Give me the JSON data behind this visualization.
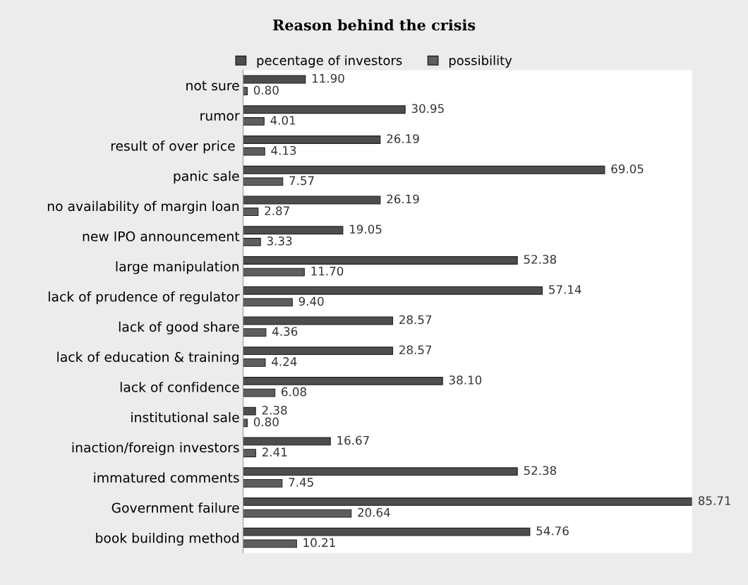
{
  "chart_data": {
    "type": "bar",
    "orientation": "horizontal",
    "title": "Reason behind the crisis",
    "categories": [
      "not sure",
      "rumor",
      "result of over price ",
      "panic sale",
      "no availability of margin loan",
      "new IPO announcement",
      "large manipulation",
      "lack of prudence of regulator",
      "lack of good share",
      "lack of education & training",
      "lack of confidence",
      "institutional sale",
      "inaction/foreign investors",
      "immatured comments",
      "Government failure",
      "book building method"
    ],
    "series": [
      {
        "name": "pecentage of investors",
        "color": "#4d4d4d",
        "values": [
          11.9,
          30.95,
          26.19,
          69.05,
          26.19,
          19.05,
          52.38,
          57.14,
          28.57,
          28.57,
          38.1,
          2.38,
          16.67,
          52.38,
          85.71,
          54.76
        ],
        "value_labels": [
          "11.90",
          "30.95",
          "26.19",
          "69.05",
          "26.19",
          "19.05",
          "52.38",
          "57.14",
          "28.57",
          "28.57",
          "38.10",
          "2.38",
          "16.67",
          "52.38",
          "85.71",
          "54.76"
        ]
      },
      {
        "name": "possibility",
        "color": "#5e5e5e",
        "values": [
          0.8,
          4.01,
          4.13,
          7.57,
          2.87,
          3.33,
          11.7,
          9.4,
          4.36,
          4.24,
          6.08,
          0.8,
          2.41,
          7.45,
          20.64,
          10.21
        ],
        "value_labels": [
          "0.80",
          "4.01",
          "4.13",
          "7.57",
          "2.87",
          "3.33",
          "11.70",
          "9.40",
          "4.36",
          "4.24",
          "6.08",
          "0.80",
          "2.41",
          "7.45",
          "20.64",
          "10.21"
        ]
      }
    ],
    "legend": "top",
    "tick_labels": "y"
  }
}
